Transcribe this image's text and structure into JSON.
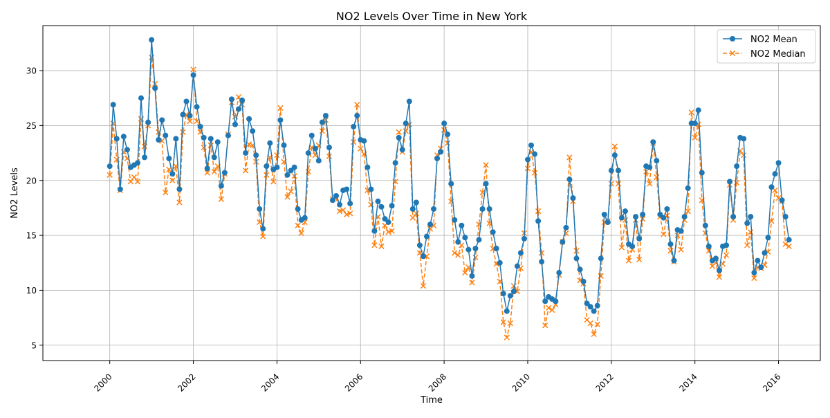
{
  "chart_data": {
    "type": "line",
    "title": "NO2 Levels Over Time in New York",
    "xlabel": "Time",
    "ylabel": "NO2 Levels",
    "x_tick_labels": [
      "2000",
      "2002",
      "2004",
      "2006",
      "2008",
      "2010",
      "2012",
      "2014",
      "2016"
    ],
    "y_tick_labels": [
      "5",
      "10",
      "15",
      "20",
      "25",
      "30"
    ],
    "y_ticks": [
      5,
      10,
      15,
      20,
      25,
      30
    ],
    "xlim": [
      1998.4,
      2017.0
    ],
    "ylim": [
      3.6,
      34.1
    ],
    "grid": true,
    "legend_position": "top-right",
    "series": [
      {
        "name": "NO2 Mean",
        "color": "#1f77b4",
        "line_style": "solid",
        "marker": "circle",
        "x": [
          2000.0,
          2000.083,
          2000.167,
          2000.25,
          2000.333,
          2000.417,
          2000.5,
          2000.583,
          2000.667,
          2000.75,
          2000.833,
          2000.917,
          2001.0,
          2001.083,
          2001.167,
          2001.25,
          2001.333,
          2001.417,
          2001.5,
          2001.583,
          2001.667,
          2001.75,
          2001.833,
          2001.917,
          2002.0,
          2002.083,
          2002.167,
          2002.25,
          2002.333,
          2002.417,
          2002.5,
          2002.583,
          2002.667,
          2002.75,
          2002.833,
          2002.917,
          2003.0,
          2003.083,
          2003.167,
          2003.25,
          2003.333,
          2003.417,
          2003.5,
          2003.583,
          2003.667,
          2003.75,
          2003.833,
          2003.917,
          2004.0,
          2004.083,
          2004.167,
          2004.25,
          2004.333,
          2004.417,
          2004.5,
          2004.583,
          2004.667,
          2004.75,
          2004.833,
          2004.917,
          2005.0,
          2005.083,
          2005.167,
          2005.25,
          2005.333,
          2005.417,
          2005.5,
          2005.583,
          2005.667,
          2005.75,
          2005.833,
          2005.917,
          2006.0,
          2006.083,
          2006.167,
          2006.25,
          2006.333,
          2006.417,
          2006.5,
          2006.583,
          2006.667,
          2006.75,
          2006.833,
          2006.917,
          2007.0,
          2007.083,
          2007.167,
          2007.25,
          2007.333,
          2007.417,
          2007.5,
          2007.583,
          2007.667,
          2007.75,
          2007.833,
          2007.917,
          2008.0,
          2008.083,
          2008.167,
          2008.25,
          2008.333,
          2008.417,
          2008.5,
          2008.583,
          2008.667,
          2008.75,
          2008.833,
          2008.917,
          2009.0,
          2009.083,
          2009.167,
          2009.25,
          2009.333,
          2009.417,
          2009.5,
          2009.583,
          2009.667,
          2009.75,
          2009.833,
          2009.917,
          2010.0,
          2010.083,
          2010.167,
          2010.25,
          2010.333,
          2010.417,
          2010.5,
          2010.583,
          2010.667,
          2010.75,
          2010.833,
          2010.917,
          2011.0,
          2011.083,
          2011.167,
          2011.25,
          2011.333,
          2011.417,
          2011.5,
          2011.583,
          2011.667,
          2011.75,
          2011.833,
          2011.917,
          2012.0,
          2012.083,
          2012.167,
          2012.25,
          2012.333,
          2012.417,
          2012.5,
          2012.583,
          2012.667,
          2012.75,
          2012.833,
          2012.917,
          2013.0,
          2013.083,
          2013.167,
          2013.25,
          2013.333,
          2013.417,
          2013.5,
          2013.583,
          2013.667,
          2013.75,
          2013.833,
          2013.917,
          2014.0,
          2014.083,
          2014.167,
          2014.25,
          2014.333,
          2014.417,
          2014.5,
          2014.583,
          2014.667,
          2014.75,
          2014.833,
          2014.917,
          2015.0,
          2015.083,
          2015.167,
          2015.25,
          2015.333,
          2015.417,
          2015.5,
          2015.583,
          2015.667,
          2015.75,
          2015.833,
          2015.917,
          2016.0,
          2016.083,
          2016.167,
          2016.25
        ],
        "y": [
          21.3,
          26.9,
          23.8,
          19.2,
          24.0,
          22.8,
          21.2,
          21.4,
          21.6,
          27.5,
          22.1,
          25.3,
          32.8,
          28.4,
          23.7,
          25.5,
          24.1,
          22.0,
          20.6,
          23.8,
          19.2,
          26.0,
          27.2,
          25.9,
          29.6,
          26.7,
          24.9,
          23.9,
          21.1,
          23.8,
          22.1,
          23.5,
          19.5,
          20.7,
          24.1,
          27.4,
          25.1,
          26.5,
          27.3,
          22.5,
          25.6,
          24.5,
          22.3,
          17.4,
          15.6,
          21.3,
          23.4,
          21.0,
          21.2,
          25.5,
          23.2,
          20.5,
          20.9,
          21.2,
          17.4,
          16.4,
          16.6,
          22.5,
          24.1,
          22.9,
          21.8,
          25.3,
          25.9,
          23.0,
          18.2,
          18.6,
          17.8,
          19.1,
          19.2,
          17.9,
          24.9,
          25.9,
          23.7,
          23.6,
          21.2,
          19.2,
          15.4,
          18.1,
          17.6,
          16.5,
          16.2,
          17.7,
          21.6,
          23.9,
          22.8,
          25.2,
          27.2,
          17.4,
          18.0,
          14.1,
          13.1,
          14.9,
          16.0,
          17.4,
          22.0,
          22.6,
          25.2,
          24.2,
          19.7,
          16.4,
          14.4,
          15.9,
          14.8,
          13.7,
          11.3,
          13.8,
          14.6,
          17.4,
          19.7,
          17.4,
          15.3,
          13.8,
          12.5,
          9.7,
          8.1,
          9.5,
          9.9,
          12.2,
          13.4,
          14.7,
          21.9,
          23.2,
          22.4,
          16.3,
          12.6,
          9.0,
          9.4,
          9.2,
          9.0,
          11.6,
          14.4,
          15.7,
          20.1,
          18.4,
          12.9,
          11.9,
          10.8,
          8.8,
          8.5,
          8.1,
          8.6,
          12.9,
          16.9,
          16.2,
          20.9,
          22.3,
          20.9,
          16.6,
          17.2,
          14.2,
          14.0,
          16.7,
          14.7,
          16.9,
          21.3,
          21.2,
          23.5,
          21.8,
          16.9,
          16.6,
          17.4,
          14.2,
          12.7,
          15.5,
          15.4,
          16.7,
          19.3,
          25.2,
          25.2,
          26.4,
          20.7,
          15.9,
          14.0,
          12.7,
          12.9,
          11.8,
          14.0,
          14.1,
          19.9,
          16.7,
          21.3,
          23.9,
          23.8,
          16.1,
          16.7,
          11.6,
          12.7,
          12.1,
          13.4,
          14.8,
          19.4,
          20.6,
          21.6,
          18.2,
          16.7,
          14.6
        ]
      },
      {
        "name": "NO2 Median",
        "color": "#ff7f0e",
        "line_style": "dashed",
        "marker": "x",
        "x": [
          2000.0,
          2000.083,
          2000.167,
          2000.25,
          2000.333,
          2000.417,
          2000.5,
          2000.583,
          2000.667,
          2000.75,
          2000.833,
          2000.917,
          2001.0,
          2001.083,
          2001.167,
          2001.25,
          2001.333,
          2001.417,
          2001.5,
          2001.583,
          2001.667,
          2001.75,
          2001.833,
          2001.917,
          2002.0,
          2002.083,
          2002.167,
          2002.25,
          2002.333,
          2002.417,
          2002.5,
          2002.583,
          2002.667,
          2002.75,
          2002.833,
          2002.917,
          2003.0,
          2003.083,
          2003.167,
          2003.25,
          2003.333,
          2003.417,
          2003.5,
          2003.583,
          2003.667,
          2003.75,
          2003.833,
          2003.917,
          2004.0,
          2004.083,
          2004.167,
          2004.25,
          2004.333,
          2004.417,
          2004.5,
          2004.583,
          2004.667,
          2004.75,
          2004.833,
          2004.917,
          2005.0,
          2005.083,
          2005.167,
          2005.25,
          2005.333,
          2005.417,
          2005.5,
          2005.583,
          2005.667,
          2005.75,
          2005.833,
          2005.917,
          2006.0,
          2006.083,
          2006.167,
          2006.25,
          2006.333,
          2006.417,
          2006.5,
          2006.583,
          2006.667,
          2006.75,
          2006.833,
          2006.917,
          2007.0,
          2007.083,
          2007.167,
          2007.25,
          2007.333,
          2007.417,
          2007.5,
          2007.583,
          2007.667,
          2007.75,
          2007.833,
          2007.917,
          2008.0,
          2008.083,
          2008.167,
          2008.25,
          2008.333,
          2008.417,
          2008.5,
          2008.583,
          2008.667,
          2008.75,
          2008.833,
          2008.917,
          2009.0,
          2009.083,
          2009.167,
          2009.25,
          2009.333,
          2009.417,
          2009.5,
          2009.583,
          2009.667,
          2009.75,
          2009.833,
          2009.917,
          2010.0,
          2010.083,
          2010.167,
          2010.25,
          2010.333,
          2010.417,
          2010.5,
          2010.583,
          2010.667,
          2010.75,
          2010.833,
          2010.917,
          2011.0,
          2011.083,
          2011.167,
          2011.25,
          2011.333,
          2011.417,
          2011.5,
          2011.583,
          2011.667,
          2011.75,
          2011.833,
          2011.917,
          2012.0,
          2012.083,
          2012.167,
          2012.25,
          2012.333,
          2012.417,
          2012.5,
          2012.583,
          2012.667,
          2012.75,
          2012.833,
          2012.917,
          2013.0,
          2013.083,
          2013.167,
          2013.25,
          2013.333,
          2013.417,
          2013.5,
          2013.583,
          2013.667,
          2013.75,
          2013.833,
          2013.917,
          2014.0,
          2014.083,
          2014.167,
          2014.25,
          2014.333,
          2014.417,
          2014.5,
          2014.583,
          2014.667,
          2014.75,
          2014.833,
          2014.917,
          2015.0,
          2015.083,
          2015.167,
          2015.25,
          2015.333,
          2015.417,
          2015.5,
          2015.583,
          2015.667,
          2015.75,
          2015.833,
          2015.917,
          2016.0,
          2016.083,
          2016.167,
          2016.25
        ],
        "y": [
          20.5,
          25.2,
          21.9,
          19.1,
          22.6,
          22.0,
          19.9,
          20.3,
          19.9,
          25.6,
          23.1,
          25.0,
          31.2,
          28.8,
          24.4,
          23.6,
          18.9,
          21.0,
          20.0,
          21.3,
          18.0,
          24.4,
          26.0,
          25.4,
          30.1,
          25.4,
          24.4,
          23.0,
          20.7,
          23.2,
          20.8,
          21.3,
          18.3,
          20.6,
          24.2,
          27.1,
          25.8,
          27.6,
          26.9,
          20.9,
          23.3,
          23.2,
          21.7,
          16.2,
          14.9,
          20.5,
          22.1,
          19.9,
          22.3,
          26.6,
          21.7,
          18.5,
          19.0,
          20.4,
          15.9,
          15.2,
          16.2,
          20.8,
          23.0,
          22.3,
          23.2,
          24.5,
          25.5,
          22.2,
          18.3,
          18.4,
          17.2,
          17.3,
          16.9,
          17.0,
          23.5,
          26.9,
          22.9,
          22.4,
          19.1,
          17.8,
          14.1,
          16.7,
          14.0,
          15.9,
          15.3,
          15.4,
          19.9,
          24.4,
          22.6,
          24.5,
          25.1,
          16.6,
          17.0,
          13.4,
          10.4,
          13.1,
          15.6,
          15.9,
          22.3,
          22.9,
          24.6,
          23.4,
          18.1,
          13.4,
          13.2,
          14.1,
          11.6,
          12.1,
          10.7,
          13.0,
          16.0,
          18.9,
          21.4,
          16.1,
          13.8,
          12.4,
          10.8,
          7.1,
          5.7,
          7.0,
          10.4,
          9.9,
          12.0,
          15.2,
          21.1,
          22.6,
          20.7,
          17.2,
          13.4,
          6.8,
          8.4,
          8.2,
          8.7,
          11.4,
          14.4,
          15.2,
          22.1,
          18.1,
          13.6,
          10.9,
          10.6,
          7.3,
          7.0,
          6.0,
          6.9,
          11.3,
          16.2,
          16.3,
          19.7,
          23.1,
          19.7,
          13.9,
          16.4,
          12.7,
          13.7,
          16.4,
          12.8,
          16.5,
          20.8,
          19.7,
          23.4,
          20.3,
          16.7,
          15.1,
          16.8,
          13.6,
          12.6,
          15.0,
          13.7,
          16.4,
          17.2,
          26.2,
          23.9,
          25.1,
          18.2,
          15.2,
          13.6,
          12.2,
          12.5,
          11.2,
          12.4,
          13.2,
          19.6,
          16.4,
          19.8,
          22.7,
          22.3,
          14.1,
          15.3,
          11.1,
          12.1,
          12.0,
          12.3,
          13.5,
          16.3,
          19.1,
          18.4,
          18.1,
          14.2,
          14.0
        ]
      }
    ]
  }
}
